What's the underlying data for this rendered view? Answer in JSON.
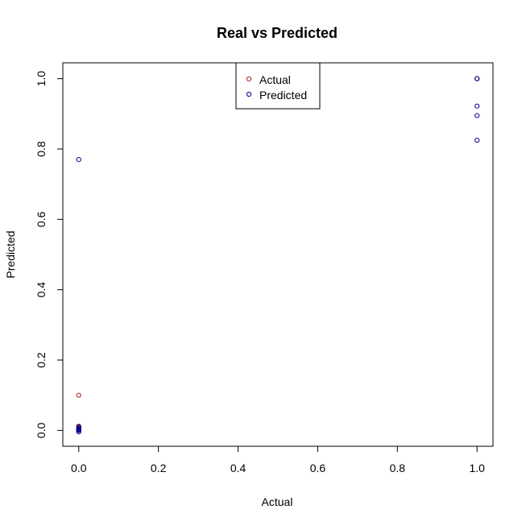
{
  "chart_data": {
    "type": "scatter",
    "title": "Real vs Predicted",
    "xlabel": "Actual",
    "ylabel": "Predicted",
    "xlim": [
      -0.04,
      1.04
    ],
    "ylim": [
      -0.045,
      1.045
    ],
    "xticks": [
      0.0,
      0.2,
      0.4,
      0.6,
      0.8,
      1.0
    ],
    "xtick_labels": [
      "0.0",
      "0.2",
      "0.4",
      "0.6",
      "0.8",
      "1.0"
    ],
    "yticks": [
      0.0,
      0.2,
      0.4,
      0.6,
      0.8,
      1.0
    ],
    "ytick_labels": [
      "0.0",
      "0.2",
      "0.4",
      "0.6",
      "0.8",
      "1.0"
    ],
    "grid": false,
    "legend": {
      "placement": "top",
      "entries": [
        {
          "name": "Actual",
          "color": "#B22222"
        },
        {
          "name": "Predicted",
          "color": "#00008B"
        }
      ]
    },
    "series": [
      {
        "name": "Actual",
        "color": "#B22222",
        "x": [
          0,
          0,
          0,
          0,
          0,
          0,
          1,
          1
        ],
        "y": [
          0.1,
          0.012,
          0.008,
          0.004,
          0.001,
          0.0,
          1.0,
          1.0
        ]
      },
      {
        "name": "Predicted",
        "color": "#00008B",
        "x": [
          0,
          0,
          0,
          0,
          0,
          0,
          0,
          1,
          1,
          1,
          1
        ],
        "y": [
          0.77,
          0.01,
          0.006,
          0.003,
          0.001,
          0.0,
          -0.004,
          1.0,
          0.922,
          0.895,
          0.825
        ]
      }
    ]
  }
}
